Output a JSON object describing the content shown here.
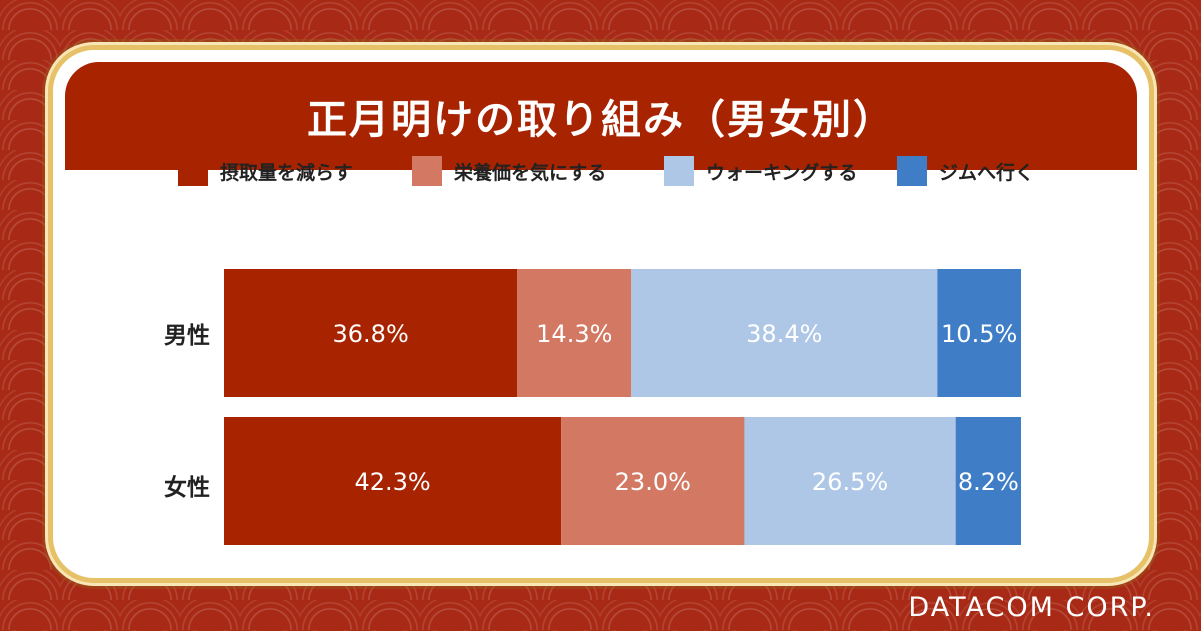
{
  "title": "正月明けの取り組み（男女別）",
  "watermark": "DATACOM CORP.",
  "chart_data": {
    "type": "bar",
    "orientation": "horizontal",
    "stacked": true,
    "normalized": true,
    "categories": [
      "男性",
      "女性"
    ],
    "series": [
      {
        "name": "摂取量を減らす",
        "values": [
          36.8,
          42.3
        ],
        "labels": [
          "36.8%",
          "42.3%"
        ],
        "color": "#a82300",
        "text_color": "#ffffff"
      },
      {
        "name": "栄養価を気にする",
        "values": [
          14.3,
          23.0
        ],
        "labels": [
          "14.3%",
          "23.0%"
        ],
        "color": "#d27863",
        "text_color": "#ffffff"
      },
      {
        "name": "ウォーキングする",
        "values": [
          38.4,
          26.5
        ],
        "labels": [
          "38.4%",
          "26.5%"
        ],
        "color": "#aec7e6",
        "text_color": "#ffffff"
      },
      {
        "name": "ジムへ行く",
        "values": [
          10.5,
          8.2
        ],
        "labels": [
          "10.5%",
          "8.2%"
        ],
        "color": "#3f7ec6",
        "text_color": "#ffffff"
      }
    ],
    "legend": "top"
  }
}
